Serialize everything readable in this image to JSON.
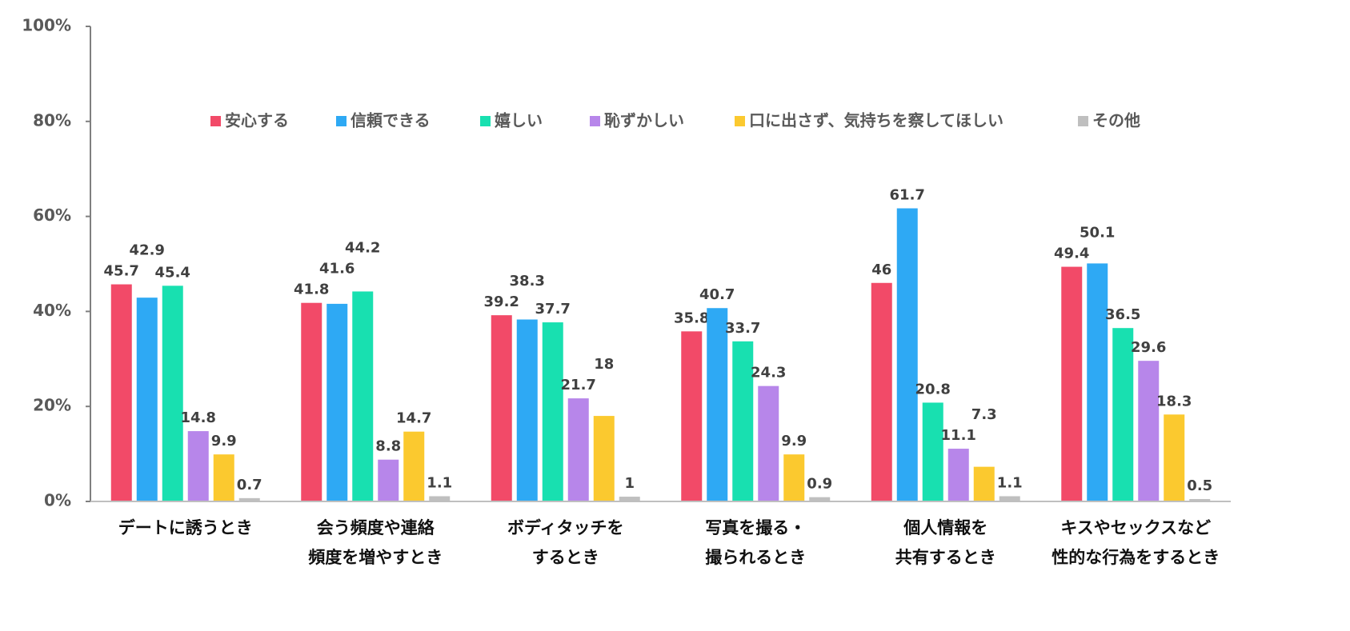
{
  "chart_data": {
    "type": "bar",
    "categories": [
      [
        "デートに誘うとき"
      ],
      [
        "会う頻度や連絡",
        "頻度を増やすとき"
      ],
      [
        "ボディタッチを",
        "するとき"
      ],
      [
        "写真を撮る・",
        "撮られるとき"
      ],
      [
        "個人情報を",
        "共有するとき"
      ],
      [
        "キスやセックスなど",
        "性的な行為をするとき"
      ]
    ],
    "series": [
      {
        "name": "安心する",
        "color": "#f24a68",
        "values": [
          45.7,
          41.8,
          39.2,
          35.8,
          46,
          49.4
        ]
      },
      {
        "name": "信頼できる",
        "color": "#2ea9f4",
        "values": [
          42.9,
          41.6,
          38.3,
          40.7,
          61.7,
          50.1
        ]
      },
      {
        "name": "嬉しい",
        "color": "#18e0b0",
        "values": [
          45.4,
          44.2,
          37.7,
          33.7,
          20.8,
          36.5
        ]
      },
      {
        "name": "恥ずかしい",
        "color": "#b786ea",
        "values": [
          14.8,
          8.8,
          21.7,
          24.3,
          11.1,
          29.6
        ]
      },
      {
        "name": "口に出さず、気持ちを察してほしい",
        "color": "#fbc92f",
        "values": [
          9.9,
          14.7,
          18,
          9.9,
          7.3,
          18.3
        ]
      },
      {
        "name": "その他",
        "color": "#bfbfbf",
        "values": [
          0.7,
          1.1,
          1,
          0.9,
          1.1,
          0.5
        ]
      }
    ],
    "ylim": [
      0,
      100
    ],
    "yticks": [
      {
        "value": 0,
        "label": "0%"
      },
      {
        "value": 20,
        "label": "20%"
      },
      {
        "value": 40,
        "label": "40%"
      },
      {
        "value": 60,
        "label": "60%"
      },
      {
        "value": 80,
        "label": "80%"
      },
      {
        "value": 100,
        "label": "100%"
      }
    ],
    "legend": "top"
  }
}
